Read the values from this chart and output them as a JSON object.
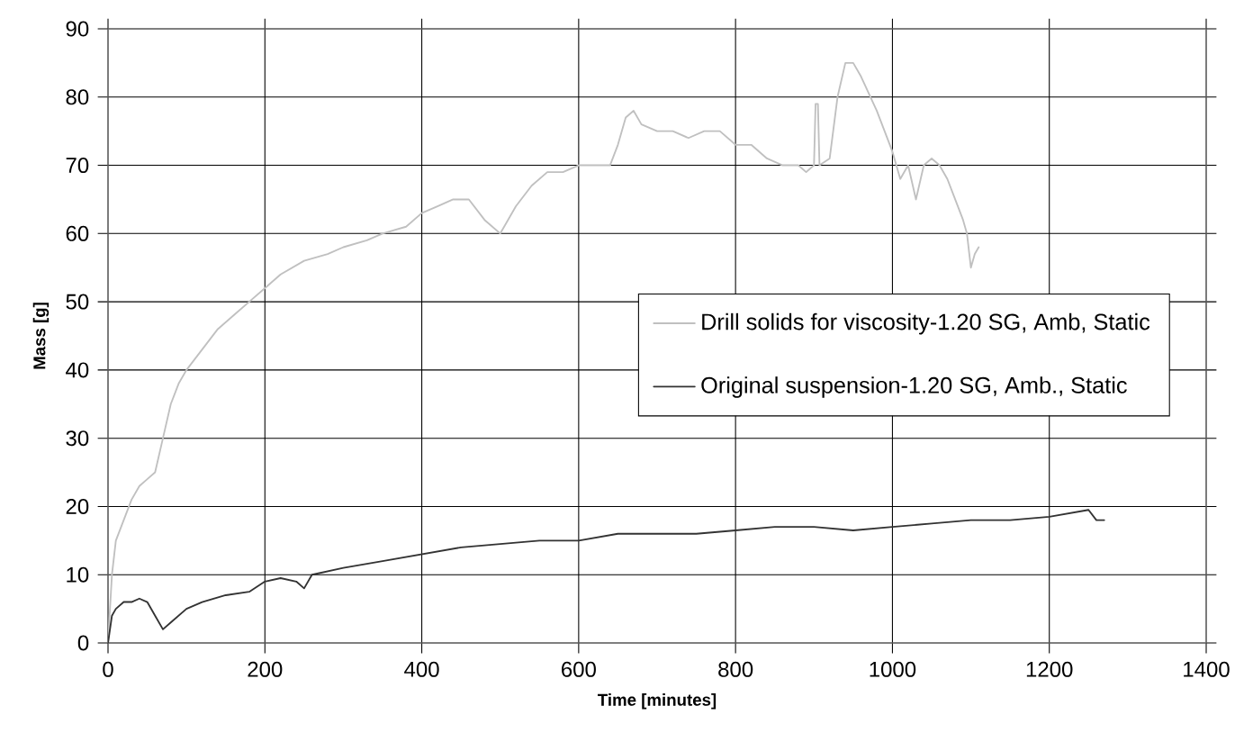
{
  "chart_data": {
    "type": "line",
    "xlabel": "Time [minutes]",
    "ylabel": "Mass [g]",
    "xlim": [
      0,
      1400
    ],
    "ylim": [
      0,
      90
    ],
    "xticks": [
      0,
      200,
      400,
      600,
      800,
      1000,
      1200,
      1400
    ],
    "yticks": [
      0,
      10,
      20,
      30,
      40,
      50,
      60,
      70,
      80,
      90
    ],
    "grid": true,
    "legend": "right",
    "marker": "none",
    "line_style": "solid",
    "series": [
      {
        "name": "Drill solids for viscosity-1.20 SG, Amb, Static",
        "color": "#c0c0c0",
        "x": [
          0,
          5,
          10,
          20,
          30,
          40,
          50,
          60,
          70,
          80,
          90,
          100,
          120,
          140,
          160,
          180,
          200,
          220,
          250,
          280,
          300,
          330,
          350,
          380,
          400,
          420,
          440,
          460,
          480,
          500,
          520,
          540,
          560,
          580,
          600,
          620,
          640,
          650,
          660,
          670,
          680,
          700,
          720,
          740,
          760,
          780,
          800,
          820,
          840,
          860,
          880,
          890,
          900,
          902,
          905,
          907,
          920,
          930,
          940,
          950,
          960,
          980,
          1000,
          1010,
          1020,
          1030,
          1040,
          1050,
          1060,
          1070,
          1080,
          1090,
          1095,
          1100,
          1105,
          1110
        ],
        "values": [
          0,
          10,
          15,
          18,
          21,
          23,
          24,
          25,
          30,
          35,
          38,
          40,
          43,
          46,
          48,
          50,
          52,
          54,
          56,
          57,
          58,
          59,
          60,
          61,
          63,
          64,
          65,
          65,
          62,
          60,
          64,
          67,
          69,
          69,
          70,
          70,
          70,
          73,
          77,
          78,
          76,
          75,
          75,
          74,
          75,
          75,
          73,
          73,
          71,
          70,
          70,
          69,
          70,
          79,
          79,
          70,
          71,
          80,
          85,
          85,
          83,
          78,
          72,
          68,
          70,
          65,
          70,
          71,
          70,
          68,
          65,
          62,
          60,
          55,
          57,
          58
        ]
      },
      {
        "name": "Original suspension-1.20 SG, Amb., Static",
        "color": "#333333",
        "x": [
          0,
          5,
          10,
          20,
          30,
          40,
          50,
          60,
          70,
          80,
          100,
          120,
          150,
          180,
          200,
          220,
          240,
          250,
          260,
          300,
          350,
          400,
          450,
          500,
          550,
          600,
          650,
          700,
          750,
          800,
          850,
          900,
          950,
          1000,
          1050,
          1100,
          1150,
          1200,
          1250,
          1260,
          1270
        ],
        "values": [
          0,
          4,
          5,
          6,
          6,
          6.5,
          6,
          4,
          2,
          3,
          5,
          6,
          7,
          7.5,
          9,
          9.5,
          9,
          8,
          10,
          11,
          12,
          13,
          14,
          14.5,
          15,
          15,
          16,
          16,
          16,
          16.5,
          17,
          17,
          16.5,
          17,
          17.5,
          18,
          18,
          18.5,
          19.5,
          18,
          18
        ]
      }
    ]
  }
}
